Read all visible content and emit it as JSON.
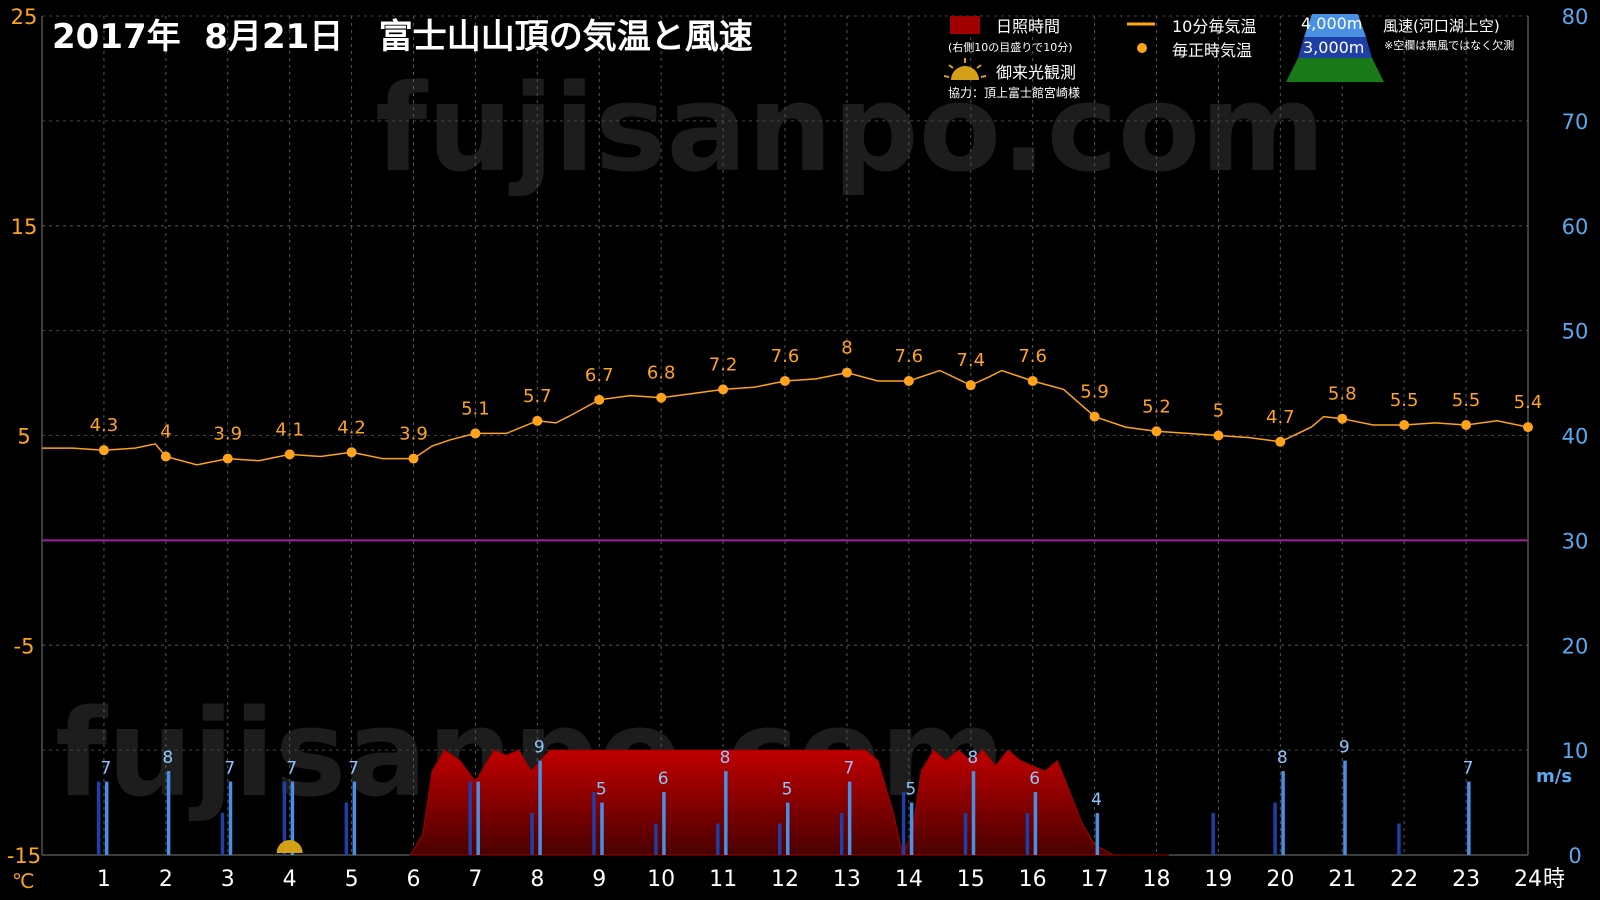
{
  "title": "2017年  8月21日   富士山山頂の気温と風速",
  "watermark": "fujisanpo.com",
  "left_axis_unit": "℃",
  "right_axis_unit": "m/s",
  "x_axis_unit": "時",
  "legend": {
    "sunshine": "日照時間",
    "sunshine_note": "(右側10の目盛りで10分)",
    "temp_10min": "10分毎気温",
    "temp_hourly": "毎正時気温",
    "wind_label": "風速(河口湖上空)",
    "wind_note": "※空欄は無風ではなく欠測",
    "alt_4000": "4,000m",
    "alt_3000": "3,000m",
    "sunrise": "御来光観測",
    "credit": "協力：頂上富士館宮崎様"
  },
  "colors": {
    "temperature": "#ffa31a",
    "wind_4000": "#4a90e2",
    "wind_3000": "#1f3fa6",
    "sunshine": "#a00000",
    "zero_line": "#a020a0",
    "left_axis": "#ffa31a",
    "right_axis": "#5aa9f0",
    "background": "#000000"
  },
  "chart_data": {
    "type": "line",
    "xlim": [
      0,
      24
    ],
    "x_ticks": [
      1,
      2,
      3,
      4,
      5,
      6,
      7,
      8,
      9,
      10,
      11,
      12,
      13,
      14,
      15,
      16,
      17,
      18,
      19,
      20,
      21,
      22,
      23,
      24
    ],
    "ylim_left": [
      -15,
      25
    ],
    "y_ticks_left": [
      25,
      15,
      5,
      -5,
      -15
    ],
    "ylim_right": [
      0,
      80
    ],
    "y_ticks_right": [
      80,
      70,
      60,
      50,
      40,
      30,
      20,
      10,
      0
    ],
    "zero_line": 0,
    "hourly_temperature": {
      "name": "毎正時気温",
      "x": [
        1,
        2,
        3,
        4,
        5,
        6,
        7,
        8,
        9,
        10,
        11,
        12,
        13,
        14,
        15,
        16,
        17,
        18,
        19,
        20,
        21,
        22,
        23,
        24
      ],
      "values": [
        4.3,
        4.0,
        3.9,
        4.1,
        4.2,
        3.9,
        5.1,
        5.7,
        6.7,
        6.8,
        7.2,
        7.6,
        8.0,
        7.6,
        7.4,
        7.6,
        5.9,
        5.2,
        5.0,
        4.7,
        5.8,
        5.5,
        5.5,
        5.4
      ],
      "labels": [
        "4.3",
        "4",
        "3.9",
        "4.1",
        "4.2",
        "3.9",
        "5.1",
        "5.7",
        "6.7",
        "6.8",
        "7.2",
        "7.6",
        "8",
        "7.6",
        "7.4",
        "7.6",
        "5.9",
        "5.2",
        "5",
        "4.7",
        "5.8",
        "5.5",
        "5.5",
        "5.4"
      ]
    },
    "temperature_10min": {
      "name": "10分毎気温",
      "x": [
        0,
        0.5,
        1,
        1.5,
        1.83,
        2,
        2.5,
        3,
        3.5,
        4,
        4.5,
        5,
        5.5,
        6,
        6.3,
        6.6,
        7,
        7.5,
        8,
        8.3,
        8.5,
        9,
        9.5,
        10,
        10.5,
        11,
        11.5,
        12,
        12.5,
        13,
        13.5,
        14,
        14.5,
        15,
        15.3,
        15.5,
        16,
        16.5,
        17,
        17.5,
        18,
        18.5,
        19,
        19.5,
        20,
        20.5,
        20.7,
        21,
        21.5,
        22,
        22.5,
        23,
        23.5,
        24
      ],
      "values": [
        4.4,
        4.4,
        4.3,
        4.4,
        4.6,
        4.0,
        3.6,
        3.9,
        3.8,
        4.1,
        4.0,
        4.2,
        3.9,
        3.9,
        4.5,
        4.8,
        5.1,
        5.1,
        5.7,
        5.6,
        5.9,
        6.7,
        6.9,
        6.8,
        7.0,
        7.2,
        7.3,
        7.6,
        7.7,
        8.0,
        7.6,
        7.6,
        8.1,
        7.4,
        7.8,
        8.1,
        7.6,
        7.2,
        5.9,
        5.4,
        5.2,
        5.1,
        5.0,
        4.9,
        4.7,
        5.4,
        5.9,
        5.8,
        5.5,
        5.5,
        5.6,
        5.5,
        5.7,
        5.4
      ]
    },
    "sunshine": {
      "name": "日照時間",
      "x": [
        5.95,
        6.15,
        6.3,
        6.5,
        6.75,
        7.0,
        7.1,
        7.3,
        7.5,
        7.7,
        7.9,
        8.2,
        8.5,
        8.8,
        9.1,
        9.5,
        10.0,
        10.5,
        11.0,
        11.5,
        12.0,
        12.5,
        13.0,
        13.3,
        13.5,
        13.75,
        13.9,
        14.05,
        14.2,
        14.4,
        14.6,
        14.8,
        15.0,
        15.2,
        15.4,
        15.6,
        15.8,
        16.0,
        16.2,
        16.4,
        16.6,
        16.8,
        17.0,
        17.3,
        17.6,
        17.9,
        18.0,
        18.2
      ],
      "values": [
        0,
        2,
        8,
        10,
        9,
        7,
        8,
        10,
        9.5,
        10,
        8,
        10,
        10,
        10,
        10,
        10,
        10,
        10,
        10,
        10,
        10,
        10,
        10,
        10,
        9,
        4,
        0,
        2,
        8,
        10,
        9,
        10,
        9,
        10,
        8.5,
        10,
        9,
        8.5,
        8,
        9,
        6,
        3,
        1,
        0,
        0,
        0,
        0,
        0
      ]
    },
    "wind_4000": {
      "name": "4,000m",
      "x": [
        1,
        2,
        3,
        4,
        5,
        7,
        8,
        9,
        10,
        11,
        12,
        13,
        14,
        15,
        16,
        17,
        20,
        21,
        23
      ],
      "values": [
        7,
        8,
        7,
        7,
        7,
        7,
        9,
        5,
        6,
        8,
        5,
        7,
        5,
        8,
        6,
        4,
        8,
        9,
        7
      ],
      "labels": [
        "7",
        "8",
        "7",
        "7",
        "7",
        "",
        "9",
        "5",
        "6",
        "8",
        "5",
        "7",
        "5",
        "8",
        "6",
        "4",
        "8",
        "9",
        "7"
      ]
    },
    "wind_3000": {
      "name": "3,000m",
      "x": [
        1,
        3,
        4,
        5,
        7,
        8,
        9,
        10,
        11,
        12,
        13,
        14,
        15,
        16,
        19,
        20,
        22
      ],
      "values": [
        7,
        4,
        7,
        5,
        7,
        4,
        6,
        3,
        3,
        3,
        4,
        6,
        4,
        4,
        4,
        5,
        3
      ]
    },
    "sunrise_hour": 4
  }
}
